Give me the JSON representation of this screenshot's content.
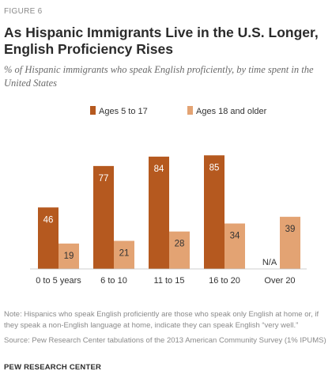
{
  "figure_label": "FIGURE 6",
  "title": "As Hispanic Immigrants Live in the U.S. Longer, English Proficiency Rises",
  "subtitle": "% of Hispanic immigrants who speak English proficiently, by time spent in the United States",
  "note": "Note: Hispanics who speak English proficiently are those who speak only English at home or, if they speak a non-English language at home, indicate they can speak English “very well.”",
  "source": "Source: Pew Research Center tabulations of the 2013 American Community Survey (1% IPUMS)",
  "org": "PEW RESEARCH CENTER",
  "colors": {
    "dark": "#b5591f",
    "light": "#e3a373",
    "text": "#333333",
    "muted": "#8a8a8a"
  },
  "chart_data": {
    "type": "bar",
    "categories": [
      "0 to 5 years",
      "6 to 10",
      "11 to 15",
      "16 to 20",
      "Over 20"
    ],
    "series": [
      {
        "name": "Ages 5 to 17",
        "values": [
          46,
          77,
          84,
          85,
          null
        ],
        "labels": [
          "46",
          "77",
          "84",
          "85",
          "N/A"
        ]
      },
      {
        "name": "Ages 18 and older",
        "values": [
          19,
          21,
          28,
          34,
          39
        ],
        "labels": [
          "19",
          "21",
          "28",
          "34",
          "39"
        ]
      }
    ],
    "ylim": [
      0,
      100
    ],
    "legend": "top",
    "grid": false
  }
}
